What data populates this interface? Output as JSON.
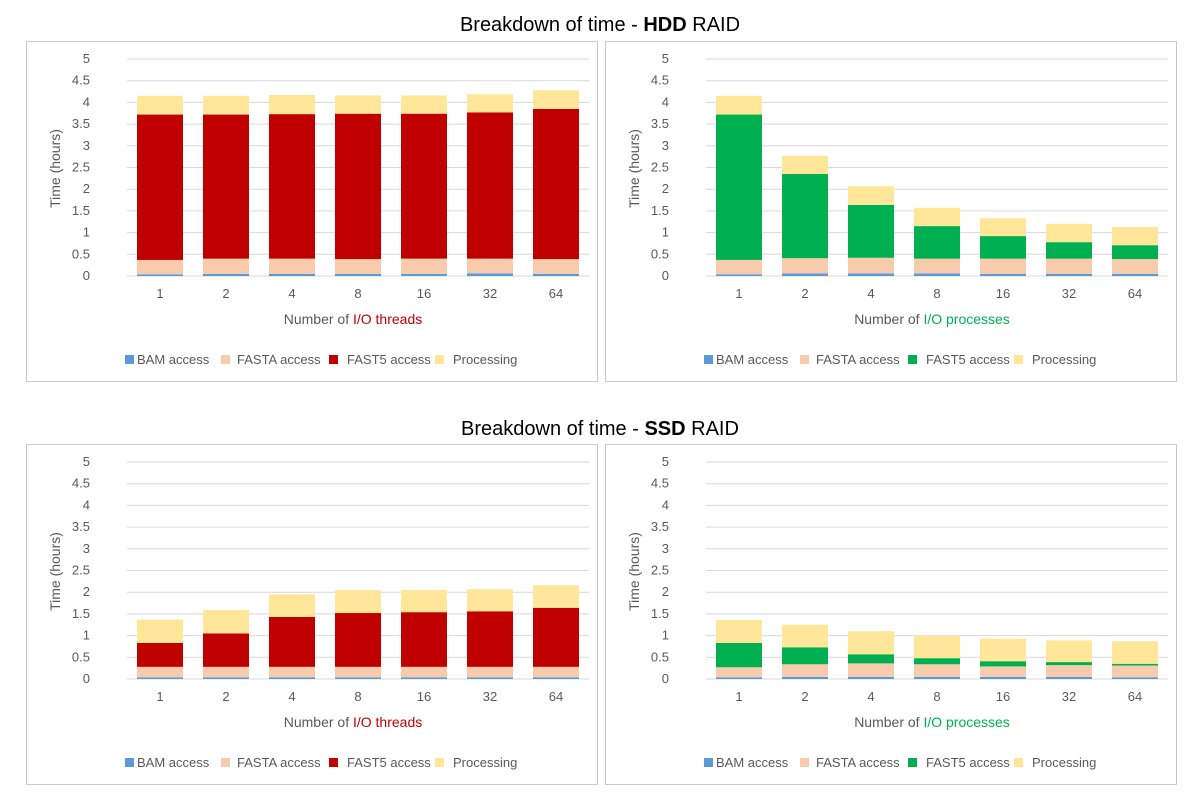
{
  "sections": {
    "hdd": {
      "prefix": "Breakdown of time - ",
      "bold": "HDD",
      "suffix": " RAID"
    },
    "ssd": {
      "prefix": "Breakdown of time - ",
      "bold": "SSD",
      "suffix": " RAID"
    }
  },
  "colors": {
    "bam": "#5b9bd5",
    "fasta": "#f8cbad",
    "fast5_threads": "#c00000",
    "fast5_processes": "#00b050",
    "processing": "#ffe699",
    "grid": "#d9d9d9",
    "axis_text": "#595959"
  },
  "chart_data": [
    {
      "id": "hdd-threads",
      "type": "bar",
      "stacked": true,
      "categories": [
        "1",
        "2",
        "4",
        "8",
        "16",
        "32",
        "64"
      ],
      "series": [
        {
          "name": "BAM access",
          "color_key": "bam",
          "values": [
            0.04,
            0.05,
            0.05,
            0.05,
            0.05,
            0.06,
            0.05
          ]
        },
        {
          "name": "FASTA access",
          "color_key": "fasta",
          "values": [
            0.33,
            0.35,
            0.35,
            0.34,
            0.35,
            0.34,
            0.34
          ]
        },
        {
          "name": "FAST5 access",
          "color_key": "fast5_threads",
          "values": [
            3.35,
            3.32,
            3.33,
            3.35,
            3.34,
            3.37,
            3.46
          ]
        },
        {
          "name": "Processing",
          "color_key": "processing",
          "values": [
            0.43,
            0.43,
            0.44,
            0.42,
            0.42,
            0.42,
            0.43
          ]
        }
      ],
      "title": "",
      "xlabel_prefix": "Number of ",
      "xlabel_highlight": "I/O threads",
      "xlabel_highlight_color": "#c00000",
      "ylabel": "Time (hours)",
      "ylim": [
        0,
        5
      ],
      "yticks": [
        "0",
        "0.5",
        "1",
        "1.5",
        "2",
        "2.5",
        "3",
        "3.5",
        "4",
        "4.5",
        "5"
      ],
      "grid": true,
      "legend": "bottom"
    },
    {
      "id": "hdd-processes",
      "type": "bar",
      "stacked": true,
      "categories": [
        "1",
        "2",
        "4",
        "8",
        "16",
        "32",
        "64"
      ],
      "series": [
        {
          "name": "BAM access",
          "color_key": "bam",
          "values": [
            0.04,
            0.06,
            0.06,
            0.06,
            0.05,
            0.05,
            0.05
          ]
        },
        {
          "name": "FASTA access",
          "color_key": "fasta",
          "values": [
            0.33,
            0.35,
            0.36,
            0.34,
            0.35,
            0.35,
            0.34
          ]
        },
        {
          "name": "FAST5 access",
          "color_key": "fast5_processes",
          "values": [
            3.35,
            1.94,
            1.22,
            0.75,
            0.52,
            0.38,
            0.32
          ]
        },
        {
          "name": "Processing",
          "color_key": "processing",
          "values": [
            0.43,
            0.42,
            0.43,
            0.42,
            0.41,
            0.42,
            0.42
          ]
        }
      ],
      "title": "",
      "xlabel_prefix": "Number of ",
      "xlabel_highlight": "I/O processes",
      "xlabel_highlight_color": "#00b050",
      "ylabel": "Time (hours)",
      "ylim": [
        0,
        5
      ],
      "yticks": [
        "0",
        "0.5",
        "1",
        "1.5",
        "2",
        "2.5",
        "3",
        "3.5",
        "4",
        "4.5",
        "5"
      ],
      "grid": true,
      "legend": "bottom"
    },
    {
      "id": "ssd-threads",
      "type": "bar",
      "stacked": true,
      "categories": [
        "1",
        "2",
        "4",
        "8",
        "16",
        "32",
        "64"
      ],
      "series": [
        {
          "name": "BAM access",
          "color_key": "bam",
          "values": [
            0.04,
            0.04,
            0.04,
            0.04,
            0.04,
            0.04,
            0.04
          ]
        },
        {
          "name": "FASTA access",
          "color_key": "fasta",
          "values": [
            0.24,
            0.24,
            0.24,
            0.24,
            0.24,
            0.24,
            0.24
          ]
        },
        {
          "name": "FAST5 access",
          "color_key": "fast5_threads",
          "values": [
            0.55,
            0.77,
            1.15,
            1.24,
            1.26,
            1.28,
            1.36
          ]
        },
        {
          "name": "Processing",
          "color_key": "processing",
          "values": [
            0.54,
            0.54,
            0.52,
            0.53,
            0.51,
            0.51,
            0.52
          ]
        }
      ],
      "title": "",
      "xlabel_prefix": "Number of ",
      "xlabel_highlight": "I/O threads",
      "xlabel_highlight_color": "#c00000",
      "ylabel": "Time (hours)",
      "ylim": [
        0,
        5
      ],
      "yticks": [
        "0",
        "0.5",
        "1",
        "1.5",
        "2",
        "2.5",
        "3",
        "3.5",
        "4",
        "4.5",
        "5"
      ],
      "grid": true,
      "legend": "bottom"
    },
    {
      "id": "ssd-processes",
      "type": "bar",
      "stacked": true,
      "categories": [
        "1",
        "2",
        "4",
        "8",
        "16",
        "32",
        "64"
      ],
      "series": [
        {
          "name": "BAM access",
          "color_key": "bam",
          "values": [
            0.04,
            0.05,
            0.05,
            0.05,
            0.05,
            0.05,
            0.04
          ]
        },
        {
          "name": "FASTA access",
          "color_key": "fasta",
          "values": [
            0.23,
            0.29,
            0.31,
            0.29,
            0.24,
            0.27,
            0.27
          ]
        },
        {
          "name": "FAST5 access",
          "color_key": "fast5_processes",
          "values": [
            0.56,
            0.39,
            0.21,
            0.14,
            0.12,
            0.07,
            0.04
          ]
        },
        {
          "name": "Processing",
          "color_key": "processing",
          "values": [
            0.53,
            0.52,
            0.53,
            0.52,
            0.52,
            0.5,
            0.52
          ]
        }
      ],
      "title": "",
      "xlabel_prefix": "Number of ",
      "xlabel_highlight": "I/O processes",
      "xlabel_highlight_color": "#00b050",
      "ylabel": "Time (hours)",
      "ylim": [
        0,
        5
      ],
      "yticks": [
        "0",
        "0.5",
        "1",
        "1.5",
        "2",
        "2.5",
        "3",
        "3.5",
        "4",
        "4.5",
        "5"
      ],
      "grid": true,
      "legend": "bottom"
    }
  ]
}
